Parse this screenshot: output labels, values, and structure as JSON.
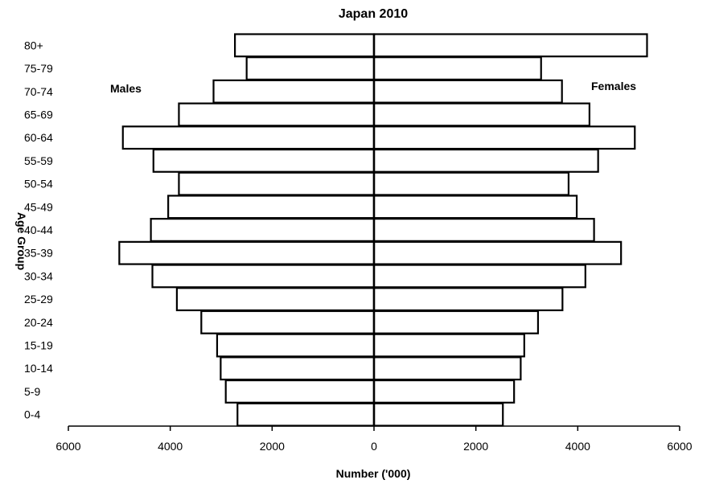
{
  "chart_data": {
    "type": "bar",
    "orientation": "horizontal-population-pyramid",
    "title": "Japan 2010",
    "xlabel": "Number ('000)",
    "ylabel": "Age Group",
    "categories": [
      "0-4",
      "5-9",
      "10-14",
      "15-19",
      "20-24",
      "25-29",
      "30-34",
      "35-39",
      "40-44",
      "45-49",
      "50-54",
      "55-59",
      "60-64",
      "65-69",
      "70-74",
      "75-79",
      "80+"
    ],
    "series": [
      {
        "name": "Males",
        "values": [
          2680,
          2910,
          3010,
          3080,
          3390,
          3870,
          4350,
          5000,
          4380,
          4040,
          3830,
          4330,
          4930,
          3830,
          3150,
          2500,
          2730
        ]
      },
      {
        "name": "Females",
        "values": [
          2530,
          2750,
          2880,
          2950,
          3220,
          3700,
          4150,
          4850,
          4320,
          3980,
          3820,
          4400,
          5120,
          4230,
          3690,
          3280,
          5360
        ]
      }
    ],
    "xlim": [
      -6000,
      6000
    ],
    "xticks": [
      {
        "value": -6000,
        "label": "6000"
      },
      {
        "value": -4000,
        "label": "4000"
      },
      {
        "value": -2000,
        "label": "2000"
      },
      {
        "value": 0,
        "label": "0"
      },
      {
        "value": 2000,
        "label": "2000"
      },
      {
        "value": 4000,
        "label": "4000"
      },
      {
        "value": 6000,
        "label": "6000"
      }
    ],
    "grid": false,
    "legend": "none",
    "colors": {
      "bar_fill": "#ffffff",
      "bar_stroke": "#000000",
      "negative_tick": "#ff0000",
      "positive_tick": "#000000"
    }
  }
}
